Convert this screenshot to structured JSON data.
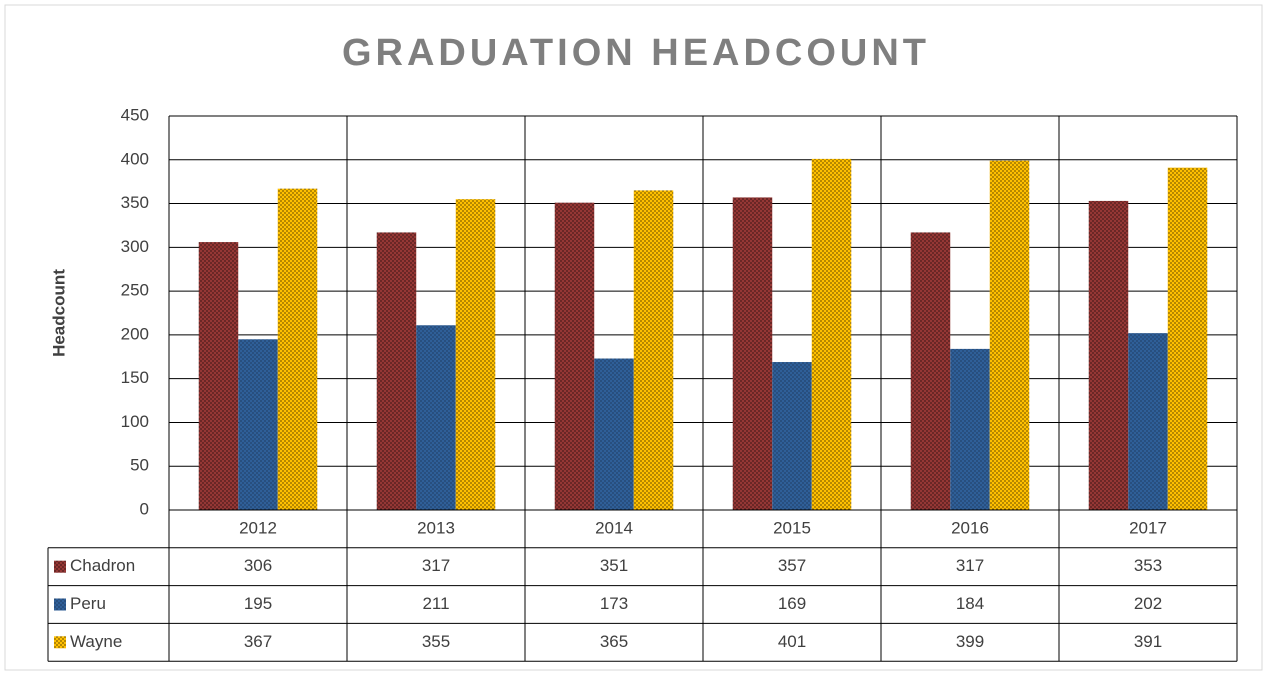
{
  "chart_data": {
    "type": "bar",
    "title": "GRADUATION HEADCOUNT",
    "y_label": "Headcount",
    "categories": [
      "2012",
      "2013",
      "2014",
      "2015",
      "2016",
      "2017"
    ],
    "series": [
      {
        "name": "Chadron",
        "color": "#953735",
        "values": [
          306,
          317,
          351,
          357,
          317,
          353
        ]
      },
      {
        "name": "Peru",
        "color": "#2f5f98",
        "values": [
          195,
          211,
          173,
          169,
          184,
          202
        ]
      },
      {
        "name": "Wayne",
        "color": "#ffc000",
        "values": [
          367,
          355,
          365,
          401,
          399,
          391
        ]
      }
    ],
    "ylim": [
      0,
      450
    ],
    "yticks": [
      0,
      50,
      100,
      150,
      200,
      250,
      300,
      350,
      400,
      450
    ],
    "grid": true,
    "data_table": true
  }
}
